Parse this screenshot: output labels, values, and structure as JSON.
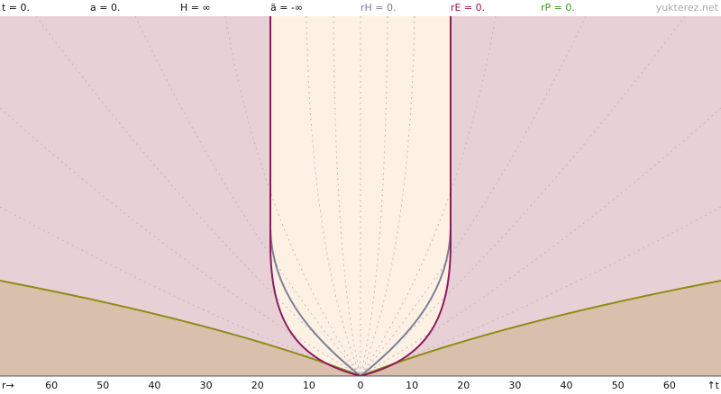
{
  "header": {
    "labels": [
      "t = 0.",
      "a = 0.",
      "H = ∞",
      "ä = -∞",
      "rH = 0.",
      "rE = 0.",
      "rP = 0."
    ],
    "site": "yukterez.net"
  },
  "axis": {
    "start": "r→",
    "ticks": [
      "60",
      "50",
      "40",
      "30",
      "20",
      "10",
      "0",
      "10",
      "20",
      "30",
      "40",
      "50",
      "60"
    ],
    "end": "↑t"
  }
}
